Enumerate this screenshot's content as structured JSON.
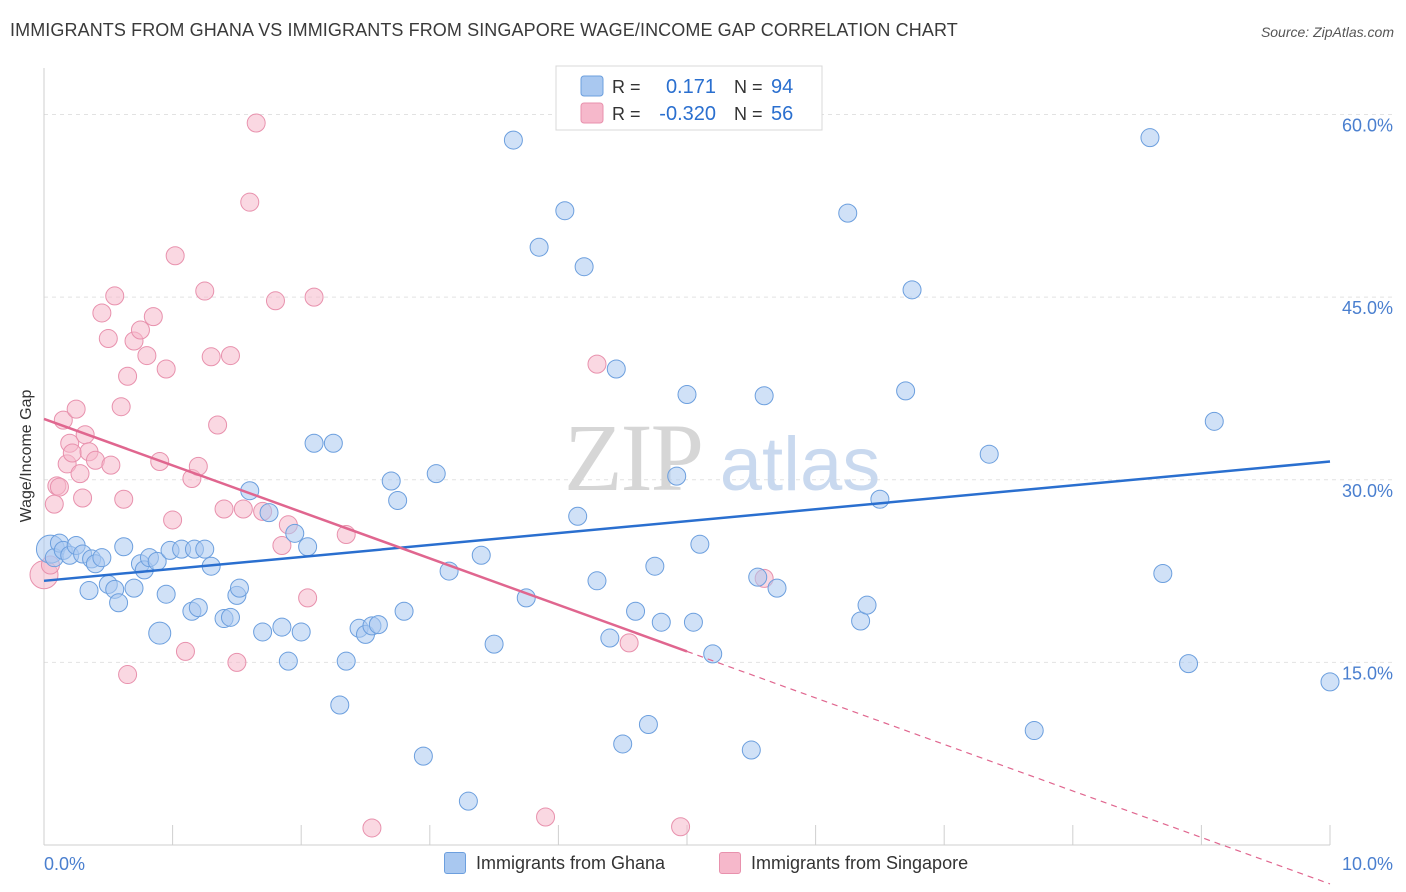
{
  "title": "IMMIGRANTS FROM GHANA VS IMMIGRANTS FROM SINGAPORE WAGE/INCOME GAP CORRELATION CHART",
  "source": "Source: ZipAtlas.com",
  "watermark": {
    "zip": "ZIP",
    "atlas": "atlas"
  },
  "colors": {
    "ghana_fill": "#a9c8f0",
    "ghana_stroke": "#6c9fde",
    "ghana_line": "#2a6fcf",
    "singapore_fill": "#f6b8cb",
    "singapore_stroke": "#e891ad",
    "singapore_line": "#e0668f",
    "axis_label": "#4a7fcf",
    "grid": "#e2e2e2"
  },
  "legend": {
    "ghana": {
      "r_label": "R =",
      "r_value": "0.171",
      "n_label": "N =",
      "n_value": "94"
    },
    "singapore": {
      "r_label": "R =",
      "r_value": "-0.320",
      "n_label": "N =",
      "n_value": "56"
    }
  },
  "bottom_legend": {
    "ghana": "Immigrants from Ghana",
    "singapore": "Immigrants from Singapore"
  },
  "chart_data": {
    "type": "scatter",
    "title": "IMMIGRANTS FROM GHANA VS IMMIGRANTS FROM SINGAPORE WAGE/INCOME GAP CORRELATION CHART",
    "xlabel": "",
    "ylabel": "Wage/Income Gap",
    "xlim": [
      0,
      10
    ],
    "ylim": [
      0,
      63
    ],
    "x_tick_labels": [
      "0.0%",
      "10.0%"
    ],
    "y_ticks": [
      15,
      30,
      45,
      60
    ],
    "y_tick_labels": [
      "15.0%",
      "30.0%",
      "45.0%",
      "60.0%"
    ],
    "series": [
      {
        "name": "Immigrants from Ghana",
        "r": 0.171,
        "n": 94,
        "trend": {
          "x": [
            0,
            10
          ],
          "y": [
            21.7,
            31.5
          ],
          "solid_to": 10
        },
        "points": [
          [
            0.05,
            24.3
          ],
          [
            0.08,
            23.6
          ],
          [
            0.12,
            24.8
          ],
          [
            0.15,
            24.2
          ],
          [
            0.2,
            23.8
          ],
          [
            0.25,
            24.6
          ],
          [
            0.3,
            23.9
          ],
          [
            0.35,
            20.9
          ],
          [
            0.37,
            23.5
          ],
          [
            0.4,
            23.1
          ],
          [
            0.45,
            23.6
          ],
          [
            0.5,
            21.4
          ],
          [
            0.55,
            21.0
          ],
          [
            0.58,
            19.9
          ],
          [
            0.62,
            24.5
          ],
          [
            0.7,
            21.1
          ],
          [
            0.75,
            23.1
          ],
          [
            0.78,
            22.6
          ],
          [
            0.82,
            23.6
          ],
          [
            0.88,
            23.3
          ],
          [
            0.9,
            17.4
          ],
          [
            0.95,
            20.6
          ],
          [
            0.98,
            24.2
          ],
          [
            1.07,
            24.3
          ],
          [
            1.15,
            19.2
          ],
          [
            1.2,
            19.5
          ],
          [
            1.17,
            24.3
          ],
          [
            1.25,
            24.3
          ],
          [
            1.3,
            22.9
          ],
          [
            1.4,
            18.6
          ],
          [
            1.45,
            18.7
          ],
          [
            1.5,
            20.5
          ],
          [
            1.52,
            21.1
          ],
          [
            1.6,
            29.1
          ],
          [
            1.7,
            17.5
          ],
          [
            1.75,
            27.3
          ],
          [
            1.85,
            17.9
          ],
          [
            1.9,
            15.1
          ],
          [
            1.95,
            25.6
          ],
          [
            2.0,
            17.5
          ],
          [
            2.05,
            24.5
          ],
          [
            2.1,
            33.0
          ],
          [
            2.25,
            33.0
          ],
          [
            2.3,
            11.5
          ],
          [
            2.35,
            15.1
          ],
          [
            2.45,
            17.8
          ],
          [
            2.5,
            17.3
          ],
          [
            2.55,
            18.0
          ],
          [
            2.6,
            18.1
          ],
          [
            2.7,
            29.9
          ],
          [
            2.75,
            28.3
          ],
          [
            2.8,
            19.2
          ],
          [
            2.95,
            7.3
          ],
          [
            3.05,
            30.5
          ],
          [
            3.15,
            22.5
          ],
          [
            3.3,
            3.6
          ],
          [
            3.4,
            23.8
          ],
          [
            3.5,
            16.5
          ],
          [
            3.65,
            57.9
          ],
          [
            3.75,
            20.3
          ],
          [
            3.85,
            49.1
          ],
          [
            4.05,
            52.1
          ],
          [
            4.15,
            27.0
          ],
          [
            4.2,
            47.5
          ],
          [
            4.3,
            21.7
          ],
          [
            4.4,
            17.0
          ],
          [
            4.45,
            39.1
          ],
          [
            4.5,
            8.3
          ],
          [
            4.6,
            19.2
          ],
          [
            4.7,
            9.9
          ],
          [
            4.75,
            22.9
          ],
          [
            4.8,
            18.3
          ],
          [
            4.92,
            30.3
          ],
          [
            5.0,
            37.0
          ],
          [
            5.05,
            18.3
          ],
          [
            5.1,
            24.7
          ],
          [
            5.2,
            15.7
          ],
          [
            5.5,
            7.8
          ],
          [
            5.55,
            22.0
          ],
          [
            5.6,
            36.9
          ],
          [
            5.7,
            21.1
          ],
          [
            6.25,
            51.9
          ],
          [
            6.35,
            18.4
          ],
          [
            6.4,
            19.7
          ],
          [
            6.5,
            28.4
          ],
          [
            6.7,
            37.3
          ],
          [
            6.75,
            45.6
          ],
          [
            7.35,
            32.1
          ],
          [
            7.7,
            9.4
          ],
          [
            8.6,
            58.1
          ],
          [
            8.7,
            22.3
          ],
          [
            8.9,
            14.9
          ],
          [
            9.1,
            34.8
          ],
          [
            10.0,
            13.4
          ]
        ]
      },
      {
        "name": "Immigrants from Singapore",
        "r": -0.32,
        "n": 56,
        "trend": {
          "x": [
            0,
            10
          ],
          "y": [
            35.0,
            -3.2
          ],
          "solid_to": 5.0
        },
        "points": [
          [
            0.0,
            22.2
          ],
          [
            0.05,
            23.0
          ],
          [
            0.08,
            28.0
          ],
          [
            0.1,
            29.5
          ],
          [
            0.12,
            29.4
          ],
          [
            0.15,
            34.9
          ],
          [
            0.18,
            31.3
          ],
          [
            0.2,
            33.0
          ],
          [
            0.22,
            32.2
          ],
          [
            0.25,
            35.8
          ],
          [
            0.28,
            30.5
          ],
          [
            0.3,
            28.5
          ],
          [
            0.32,
            33.7
          ],
          [
            0.35,
            32.3
          ],
          [
            0.4,
            31.6
          ],
          [
            0.45,
            43.7
          ],
          [
            0.5,
            41.6
          ],
          [
            0.52,
            31.2
          ],
          [
            0.55,
            45.1
          ],
          [
            0.6,
            36.0
          ],
          [
            0.62,
            28.4
          ],
          [
            0.65,
            38.5
          ],
          [
            0.7,
            41.4
          ],
          [
            0.75,
            42.3
          ],
          [
            0.8,
            40.2
          ],
          [
            0.85,
            43.4
          ],
          [
            0.9,
            31.5
          ],
          [
            0.95,
            39.1
          ],
          [
            1.0,
            26.7
          ],
          [
            1.02,
            48.4
          ],
          [
            1.1,
            15.9
          ],
          [
            1.15,
            30.1
          ],
          [
            1.2,
            31.1
          ],
          [
            1.25,
            45.5
          ],
          [
            1.3,
            40.1
          ],
          [
            1.35,
            34.5
          ],
          [
            1.4,
            27.6
          ],
          [
            1.45,
            40.2
          ],
          [
            1.5,
            15.0
          ],
          [
            1.55,
            27.6
          ],
          [
            1.6,
            52.8
          ],
          [
            1.65,
            59.3
          ],
          [
            1.7,
            27.4
          ],
          [
            1.8,
            44.7
          ],
          [
            1.85,
            24.6
          ],
          [
            1.9,
            26.3
          ],
          [
            2.05,
            20.3
          ],
          [
            2.1,
            45.0
          ],
          [
            2.35,
            25.5
          ],
          [
            2.55,
            1.4
          ],
          [
            3.9,
            2.3
          ],
          [
            4.3,
            39.5
          ],
          [
            4.55,
            16.6
          ],
          [
            4.95,
            1.5
          ],
          [
            5.6,
            21.9
          ],
          [
            0.65,
            14.0
          ]
        ]
      }
    ]
  }
}
